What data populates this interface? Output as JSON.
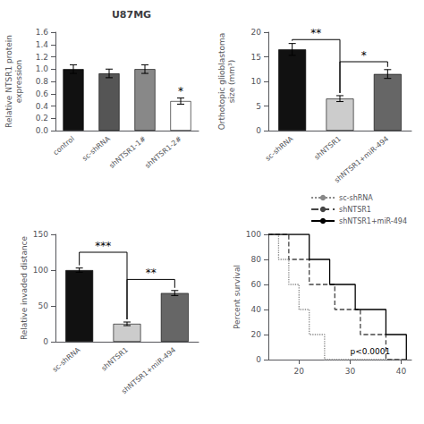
{
  "chart_data": [
    {
      "type": "bar",
      "title": "U87MG",
      "ylabel": "Relative NTSR1 protein\nexpression",
      "categories": [
        "control",
        "sc-shRNA",
        "shNTSR1-1#",
        "shNTSR1-2#"
      ],
      "values": [
        1.0,
        0.93,
        1.0,
        0.48
      ],
      "errors": [
        0.07,
        0.07,
        0.07,
        0.05
      ],
      "colors": [
        "#111111",
        "#555555",
        "#888888",
        "#ffffff"
      ],
      "ylim": [
        0.0,
        1.6
      ],
      "yticks": [
        {
          "value": 0.0,
          "label": "0.0"
        },
        0.2,
        0.4,
        0.6,
        0.8,
        {
          "value": 1.0,
          "label": "1.0"
        },
        1.2,
        1.4,
        1.6
      ],
      "grid": false,
      "annotations": [
        {
          "text": "*",
          "x": "shNTSR1-2#"
        }
      ]
    },
    {
      "type": "bar",
      "ylabel": "Orthotopic glioblastoma\nsize (mm³)",
      "categories": [
        "sc-shRNA",
        "shNTSR1",
        "shNTSR1+miR-494"
      ],
      "values": [
        16.5,
        6.5,
        11.5
      ],
      "errors": [
        1.2,
        0.6,
        0.9
      ],
      "colors": [
        "#111111",
        "#cccccc",
        "#666666"
      ],
      "ylim": [
        0,
        20
      ],
      "yticks": [
        0,
        5,
        10,
        15,
        20
      ],
      "grid": false,
      "annotations": [
        {
          "text": "**",
          "from": "sc-shRNA",
          "to": "shNTSR1",
          "y": 18.5
        },
        {
          "text": "*",
          "from": "shNTSR1",
          "to": "shNTSR1+miR-494",
          "y": 14.0
        }
      ]
    },
    {
      "type": "bar",
      "ylabel": "Relative invaded distance",
      "categories": [
        "sc-shRNA",
        "shNTSR1",
        "shNTSR1+miR-494"
      ],
      "values": [
        100,
        25,
        68
      ],
      "errors": [
        3,
        2.5,
        3.5
      ],
      "colors": [
        "#111111",
        "#cccccc",
        "#666666"
      ],
      "ylim": [
        0,
        150
      ],
      "yticks": [
        0,
        50,
        100,
        150
      ],
      "grid": false,
      "annotations": [
        {
          "text": "***",
          "from": "sc-shRNA",
          "to": "shNTSR1",
          "y": 125
        },
        {
          "text": "**",
          "from": "shNTSR1",
          "to": "shNTSR1+miR-494",
          "y": 87
        }
      ]
    },
    {
      "type": "line",
      "ylabel": "Percent survival",
      "series": [
        {
          "name": "sc-shRNA",
          "color": "#888888",
          "line_style": "dotted",
          "x": [
            14,
            16,
            16,
            18,
            18,
            20,
            20,
            22,
            22,
            25,
            25,
            41
          ],
          "values": [
            100,
            100,
            80,
            80,
            60,
            60,
            40,
            40,
            20,
            20,
            0,
            0
          ]
        },
        {
          "name": "shNTSR1",
          "color": "#444444",
          "line_style": "dashed",
          "x": [
            14,
            18,
            18,
            22,
            22,
            27,
            27,
            32,
            32,
            37,
            37,
            41
          ],
          "values": [
            100,
            100,
            80,
            80,
            60,
            60,
            40,
            40,
            20,
            20,
            0,
            0
          ]
        },
        {
          "name": "shNTSR1+miR-494",
          "color": "#000000",
          "line_style": "solid",
          "x": [
            14,
            22,
            22,
            26,
            26,
            31,
            31,
            37,
            37,
            41,
            41
          ],
          "values": [
            100,
            100,
            80,
            80,
            60,
            60,
            40,
            40,
            20,
            20,
            0
          ]
        }
      ],
      "xlim": [
        14,
        42
      ],
      "ylim": [
        0,
        100
      ],
      "xticks": [
        20,
        30,
        40
      ],
      "yticks": [
        0,
        20,
        40,
        60,
        80,
        100
      ],
      "grid": false,
      "legend": "upper right",
      "annotations": [
        {
          "text": "p<0.0001",
          "x": 30,
          "y": 3
        }
      ]
    }
  ]
}
